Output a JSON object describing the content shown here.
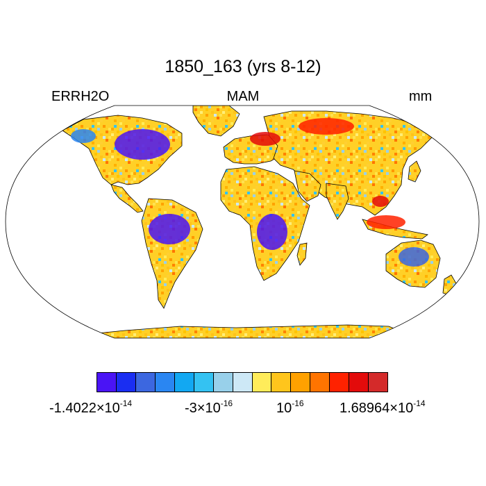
{
  "plot": {
    "title": "1850_163 (yrs 8-12)",
    "left_label": "ERRH2O",
    "center_label": "MAM",
    "right_label": "mm"
  },
  "colorbar": {
    "colors": [
      "#4a14f5",
      "#1a2ef2",
      "#3c67e0",
      "#2a86f2",
      "#12a8f2",
      "#34c2f2",
      "#98d0ea",
      "#cde8f6",
      "#ffec5a",
      "#ffc51c",
      "#ffa100",
      "#ff7400",
      "#ff2200",
      "#e30b0b",
      "#d42a2a"
    ],
    "labels": [
      {
        "mantissa": "-1.4022×10",
        "exponent": "-14"
      },
      {
        "mantissa": "-3×10",
        "exponent": "-16"
      },
      {
        "mantissa": "10",
        "exponent": "-16"
      },
      {
        "mantissa": "1.68964×10",
        "exponent": "-14"
      }
    ]
  }
}
